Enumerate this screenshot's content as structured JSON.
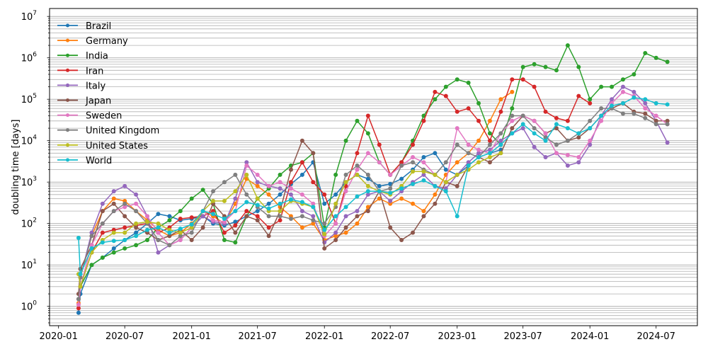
{
  "chart_data": {
    "type": "line",
    "title": "",
    "xlabel": "",
    "ylabel": "doubling time [days]",
    "yscale": "log",
    "ylim": [
      0.34,
      12500000
    ],
    "xlim": [
      "2019-12-07",
      "2024-10-22"
    ],
    "grid": "y major and minor",
    "legend": "top-left",
    "x_ticks": [
      "2020-01",
      "2020-07",
      "2021-01",
      "2021-07",
      "2022-01",
      "2022-07",
      "2023-01",
      "2023-07",
      "2024-01",
      "2024-07"
    ],
    "y_ticks": [
      {
        "value": 1,
        "base": "10",
        "exp": "0"
      },
      {
        "value": 10,
        "base": "10",
        "exp": "1"
      },
      {
        "value": 100,
        "base": "10",
        "exp": "2"
      },
      {
        "value": 1000,
        "base": "10",
        "exp": "3"
      },
      {
        "value": 10000,
        "base": "10",
        "exp": "4"
      },
      {
        "value": 100000,
        "base": "10",
        "exp": "5"
      },
      {
        "value": 1000000,
        "base": "10",
        "exp": "6"
      },
      {
        "value": 10000000,
        "base": "10",
        "exp": "7"
      }
    ],
    "x": [
      "2020-02-25",
      "2020-03",
      "2020-04",
      "2020-05",
      "2020-06",
      "2020-07",
      "2020-08",
      "2020-09",
      "2020-10",
      "2020-11",
      "2020-12",
      "2021-01",
      "2021-02",
      "2021-03",
      "2021-04",
      "2021-05",
      "2021-06",
      "2021-07",
      "2021-08",
      "2021-09",
      "2021-10",
      "2021-11",
      "2021-12",
      "2022-01",
      "2022-02",
      "2022-03",
      "2022-04",
      "2022-05",
      "2022-06",
      "2022-07",
      "2022-08",
      "2022-09",
      "2022-10",
      "2022-11",
      "2022-12",
      "2023-01",
      "2023-02",
      "2023-03",
      "2023-04",
      "2023-05",
      "2023-06",
      "2023-07",
      "2023-08",
      "2023-09",
      "2023-10",
      "2023-11",
      "2023-12",
      "2024-01",
      "2024-02",
      "2024-03",
      "2024-04",
      "2024-05",
      "2024-06",
      "2024-07",
      "2024-08"
    ],
    "series": [
      {
        "name": "Brazil",
        "color": "#1f77b4",
        "values": [
          0.7,
          2,
          10,
          15,
          25,
          40,
          60,
          100,
          170,
          150,
          120,
          130,
          150,
          100,
          90,
          110,
          150,
          200,
          300,
          500,
          900,
          1500,
          3000,
          300,
          500,
          1000,
          1500,
          1200,
          800,
          900,
          1200,
          2000,
          4000,
          5000,
          2000,
          1500,
          2500,
          4000,
          5000,
          6000,
          null,
          null,
          null,
          null,
          null,
          null,
          null,
          null,
          null,
          null,
          null,
          null,
          null,
          null,
          null
        ]
      },
      {
        "name": "Germany",
        "color": "#ff7f0e",
        "values": [
          1.2,
          5,
          50,
          200,
          400,
          350,
          200,
          120,
          70,
          50,
          60,
          100,
          200,
          150,
          100,
          300,
          1200,
          800,
          500,
          250,
          150,
          80,
          100,
          40,
          50,
          60,
          100,
          250,
          400,
          300,
          400,
          300,
          200,
          500,
          1500,
          3000,
          5000,
          10000,
          30000,
          100000,
          150000,
          null,
          null,
          null,
          null,
          null,
          null,
          null,
          null,
          null,
          null,
          null,
          null,
          null,
          null
        ]
      },
      {
        "name": "India",
        "color": "#2ca02c",
        "values": [
          1.5,
          3,
          10,
          15,
          20,
          25,
          30,
          40,
          80,
          120,
          200,
          400,
          650,
          300,
          40,
          35,
          150,
          400,
          700,
          1500,
          2500,
          3000,
          5000,
          80,
          1500,
          10000,
          30000,
          15000,
          3000,
          1500,
          3000,
          10000,
          40000,
          100000,
          200000,
          300000,
          250000,
          80000,
          15000,
          8000,
          60000,
          600000,
          700000,
          600000,
          500000,
          2000000,
          600000,
          100000,
          200000,
          200000,
          300000,
          400000,
          1300000,
          1000000,
          800000
        ]
      },
      {
        "name": "Iran",
        "color": "#d62728",
        "values": [
          0.9,
          3,
          20,
          60,
          70,
          80,
          90,
          100,
          60,
          80,
          130,
          140,
          150,
          200,
          60,
          90,
          200,
          150,
          80,
          120,
          1000,
          3000,
          1000,
          500,
          100,
          800,
          5000,
          40000,
          8000,
          1500,
          3000,
          8000,
          30000,
          150000,
          120000,
          50000,
          60000,
          30000,
          10000,
          50000,
          300000,
          300000,
          200000,
          50000,
          35000,
          30000,
          120000,
          80000,
          null,
          null,
          null,
          null,
          null,
          null,
          null
        ]
      },
      {
        "name": "Italy",
        "color": "#9467bd",
        "values": [
          1.5,
          5,
          60,
          300,
          600,
          800,
          500,
          150,
          20,
          30,
          40,
          80,
          150,
          110,
          100,
          400,
          3000,
          1000,
          800,
          700,
          500,
          200,
          150,
          35,
          60,
          150,
          200,
          500,
          600,
          350,
          600,
          1000,
          1500,
          800,
          700,
          1500,
          3000,
          5000,
          6000,
          10000,
          15000,
          20000,
          7000,
          4000,
          5000,
          2500,
          3000,
          8000,
          40000,
          100000,
          200000,
          150000,
          80000,
          30000,
          9000
        ]
      },
      {
        "name": "Japan",
        "color": "#8c564b",
        "values": [
          2,
          8,
          30,
          200,
          300,
          150,
          80,
          60,
          40,
          50,
          70,
          40,
          80,
          300,
          150,
          60,
          150,
          120,
          50,
          200,
          2000,
          10000,
          5000,
          25,
          40,
          80,
          150,
          200,
          600,
          80,
          40,
          60,
          150,
          300,
          1000,
          800,
          2500,
          4000,
          3000,
          5000,
          20000,
          40000,
          30000,
          15000,
          20000,
          10000,
          12000,
          20000,
          40000,
          60000,
          80000,
          50000,
          45000,
          30000,
          30000
        ]
      },
      {
        "name": "Sweden",
        "color": "#e377c2",
        "values": [
          1.1,
          3,
          30,
          100,
          200,
          250,
          300,
          150,
          60,
          30,
          40,
          80,
          200,
          120,
          110,
          200,
          2500,
          1500,
          800,
          1000,
          700,
          500,
          300,
          50,
          100,
          600,
          2000,
          5000,
          3000,
          1500,
          2500,
          4000,
          3000,
          1500,
          1000,
          20000,
          8000,
          6000,
          5000,
          15000,
          30000,
          40000,
          30000,
          15000,
          5000,
          4500,
          4000,
          10000,
          30000,
          80000,
          150000,
          120000,
          60000,
          40000,
          25000
        ]
      },
      {
        "name": "United Kingdom",
        "color": "#7f7f7f",
        "values": [
          1.5,
          5,
          50,
          100,
          200,
          300,
          200,
          100,
          40,
          30,
          50,
          60,
          200,
          600,
          1000,
          1500,
          500,
          250,
          150,
          150,
          130,
          150,
          120,
          100,
          250,
          1500,
          2500,
          1500,
          600,
          700,
          2500,
          3000,
          2000,
          1500,
          3000,
          8000,
          5000,
          4000,
          8000,
          15000,
          40000,
          40000,
          20000,
          12000,
          8000,
          10000,
          15000,
          30000,
          60000,
          60000,
          45000,
          45000,
          35000,
          25000,
          25000
        ]
      },
      {
        "name": "United States",
        "color": "#bcbd22",
        "values": [
          6,
          3,
          20,
          40,
          60,
          60,
          100,
          110,
          100,
          70,
          60,
          80,
          200,
          350,
          350,
          600,
          1500,
          400,
          200,
          200,
          350,
          300,
          250,
          55,
          300,
          1000,
          1500,
          800,
          600,
          500,
          800,
          1800,
          1800,
          1500,
          1000,
          1500,
          2000,
          3000,
          4000,
          5000,
          null,
          null,
          null,
          null,
          null,
          null,
          null,
          null,
          null,
          null,
          null,
          null,
          null,
          null,
          null
        ]
      },
      {
        "name": "World",
        "color": "#17becf",
        "values": [
          45,
          6,
          25,
          35,
          38,
          40,
          50,
          70,
          80,
          60,
          75,
          95,
          200,
          170,
          130,
          200,
          330,
          280,
          230,
          300,
          380,
          330,
          250,
          70,
          150,
          250,
          450,
          600,
          600,
          550,
          700,
          900,
          1100,
          800,
          600,
          150,
          2500,
          4000,
          5000,
          8000,
          15000,
          25000,
          15000,
          10000,
          25000,
          20000,
          15000,
          20000,
          40000,
          70000,
          80000,
          110000,
          100000,
          80000,
          75000
        ]
      }
    ]
  }
}
